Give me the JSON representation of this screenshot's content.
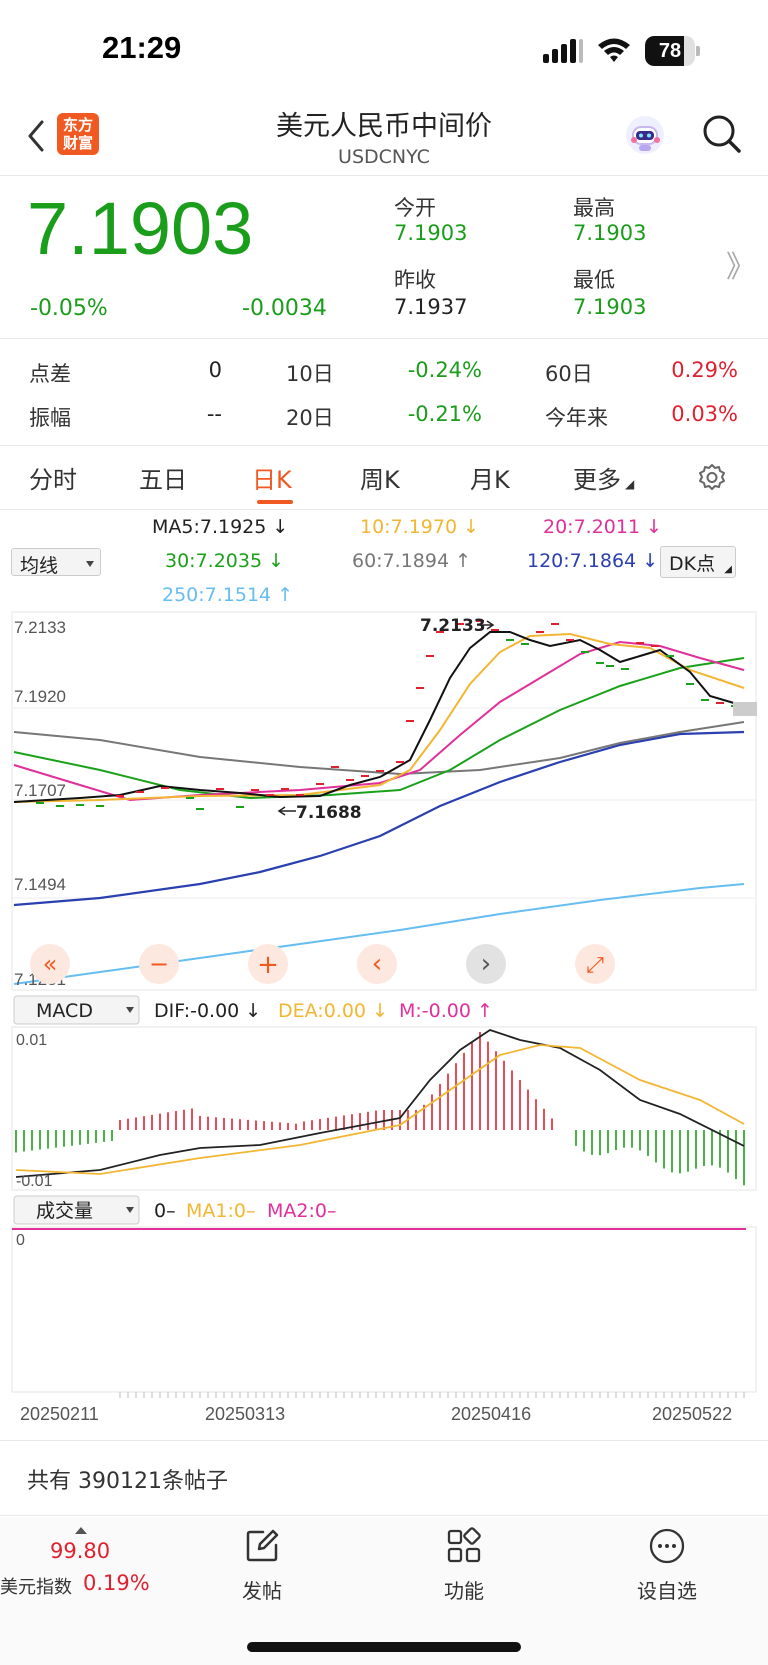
{
  "status_bar": {
    "time": "21:29",
    "battery": "78",
    "battery_level": 0.78
  },
  "header": {
    "title": "美元人民币中间价",
    "subtitle": "USDCNYC",
    "logo_line1": "东方",
    "logo_line2": "财富"
  },
  "quote": {
    "price": "7.1903",
    "change_pct": "-0.05%",
    "change_val": "-0.0034",
    "open_label": "今开",
    "open": "7.1903",
    "high_label": "最高",
    "high": "7.1903",
    "prev_close_label": "昨收",
    "prev_close": "7.1937",
    "low_label": "最低",
    "low": "7.1903",
    "more_symbol": "》"
  },
  "stats": {
    "spread_label": "点差",
    "spread": "0",
    "d10_label": "10日",
    "d10": "-0.24%",
    "d60_label": "60日",
    "d60": "0.29%",
    "amplitude_label": "振幅",
    "amplitude": "--",
    "d20_label": "20日",
    "d20": "-0.21%",
    "ytd_label": "今年来",
    "ytd": "0.03%"
  },
  "tabs": {
    "items": [
      "分时",
      "五日",
      "日K",
      "周K",
      "月K",
      "更多"
    ],
    "active": "日K"
  },
  "ma_legend": {
    "selector": "均线",
    "ma5": "MA5:7.1925",
    "ma10": "10:7.1970",
    "ma20": "20:7.2011",
    "ma30": "30:7.2035",
    "ma60": "60:7.1894",
    "ma120": "120:7.1864",
    "ma250": "250:7.1514",
    "dk_button": "DK点",
    "arrow_down": "↓",
    "arrow_up": "↑"
  },
  "main_chart": {
    "y_labels": [
      "7.2133",
      "7.1920",
      "7.1707",
      "7.1494",
      "7.1281"
    ],
    "high_marker": "7.2133",
    "low_marker": "7.1688",
    "colors": {
      "ma5": "#111111",
      "ma10": "#f2b632",
      "ma20": "#e0309a",
      "ma30": "#1aa11a",
      "ma60": "#777777",
      "ma120": "#2a3fb0",
      "ma250": "#66bdf0"
    }
  },
  "chart_controls": {
    "first": "«",
    "zoom_out": "−",
    "zoom_in": "+",
    "prev": "‹",
    "next": "›",
    "fullscreen": "⤢"
  },
  "macd": {
    "selector": "MACD",
    "dif": "DIF:-0.00",
    "dea": "DEA:0.00",
    "m": "M:-0.00",
    "y_top": "0.01",
    "y_bottom": "-0.01"
  },
  "volume": {
    "selector": "成交量",
    "value": "0",
    "ma1": "MA1:0",
    "ma2": "MA2:0",
    "dash": "–",
    "y_label": "0"
  },
  "x_axis_dates": [
    "20250211",
    "20250313",
    "20250416",
    "20250522"
  ],
  "posts": {
    "text": "共有 390121条帖子"
  },
  "bottom_bar": {
    "index_value": "99.80",
    "index_name": "美元指数",
    "index_pct": "0.19%",
    "post_label": "发帖",
    "function_label": "功能",
    "watch_label": "设自选"
  }
}
